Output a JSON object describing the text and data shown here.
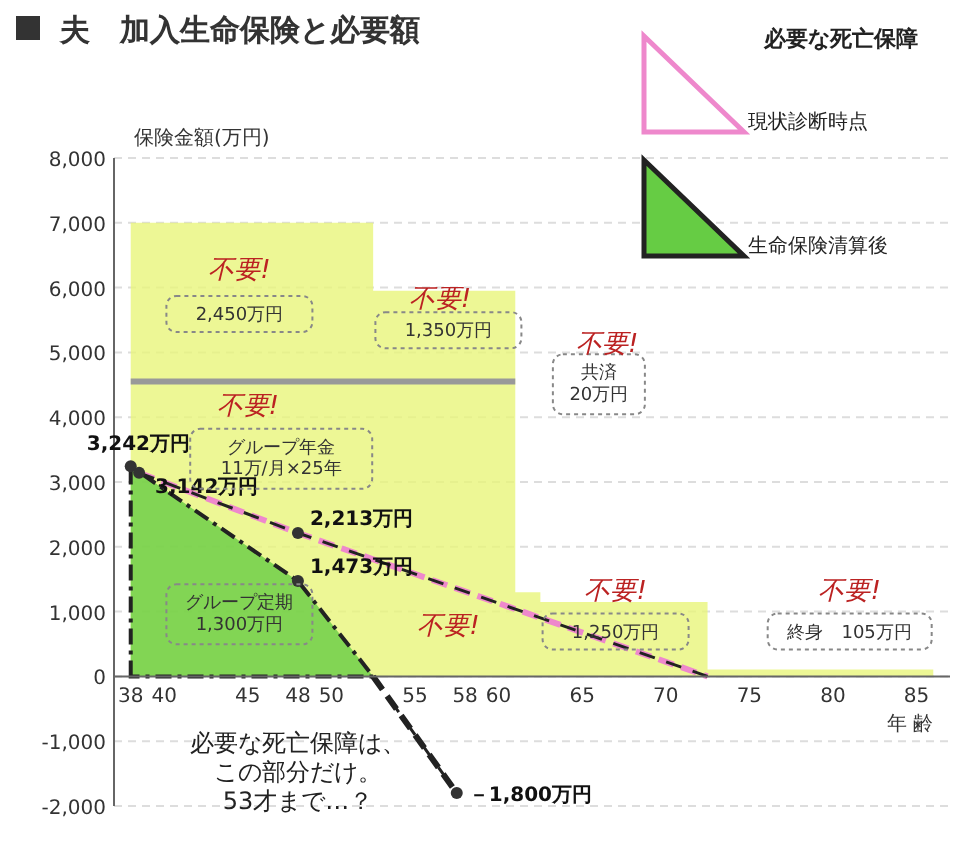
{
  "chart_data": {
    "type": "area",
    "title": "夫　加入生命保険と必要額",
    "ylabel": "保険金額(万円)",
    "xlabel": "年 齢",
    "legend_title": "必要な死亡保障",
    "legend": "top right",
    "grid": "y",
    "xlim": [
      37,
      87
    ],
    "xticks": [
      38,
      40,
      45,
      48,
      50,
      55,
      58,
      60,
      65,
      70,
      75,
      80,
      85
    ],
    "ylim": [
      -2000,
      8000
    ],
    "yticks": [
      {
        "value": -2000,
        "label": "-2,000"
      },
      {
        "value": -1000,
        "label": "-1,000"
      },
      0,
      {
        "value": 1000,
        "label": "1,000"
      },
      {
        "value": 2000,
        "label": "2,000"
      },
      {
        "value": 3000,
        "label": "3,000"
      },
      {
        "value": 4000,
        "label": "4,000"
      },
      {
        "value": 5000,
        "label": "5,000"
      },
      {
        "value": 6000,
        "label": "6,000"
      },
      {
        "value": 7000,
        "label": "7,000"
      },
      {
        "value": 8000,
        "label": "8,000"
      }
    ],
    "series": [
      {
        "color": "#e8f57a",
        "x": [
          38,
          52.5,
          52.5,
          61,
          61,
          62.5,
          62.5,
          72.5,
          72.5,
          86
        ],
        "values": [
          7000,
          7000,
          5950,
          5950,
          1300,
          1300,
          1150,
          1150,
          105,
          105
        ]
      },
      {
        "type": "line",
        "color": "#999999",
        "x": [
          38,
          61
        ],
        "values": [
          4550,
          4550
        ]
      },
      {
        "type": "line",
        "name": "現状診断時点",
        "color": "#ee88cc",
        "line_style": "dashed",
        "x": [
          38.5,
          48,
          72.5
        ],
        "values": [
          3142,
          2213,
          0
        ]
      },
      {
        "name": "生命保険清算後",
        "color": "#66cc44",
        "x": [
          38,
          48,
          52.5
        ],
        "values": [
          3242,
          1473,
          0
        ]
      },
      {
        "type": "line",
        "color": "#222222",
        "line_style": "dashed",
        "x": [
          52.5,
          57.5
        ],
        "values": [
          0,
          -1800
        ]
      }
    ],
    "annotations": [
      {
        "text": "3,242万円",
        "x": 38,
        "y": 3242
      },
      {
        "text": "3,142万円",
        "x": 38.5,
        "y": 3142
      },
      {
        "text": "2,213万円",
        "x": 48,
        "y": 2213
      },
      {
        "text": "1,473万円",
        "x": 48,
        "y": 1473
      },
      {
        "text": "－1,800万円",
        "x": 57.5,
        "y": -1800
      },
      "2,450万円",
      "1,350万円",
      "共済20万円",
      "グループ年金11万/月×25年",
      "グループ定期1,300万円",
      "1,250万円",
      "終身　105万円",
      "不要!",
      "不要!",
      "不要!",
      "不要!",
      "不要!",
      "不要!",
      "不要!",
      "必要な死亡保障は、この部分だけ。53才まで…？"
    ]
  }
}
